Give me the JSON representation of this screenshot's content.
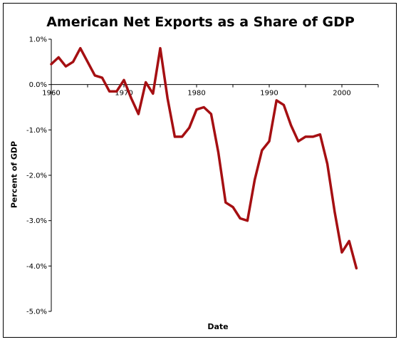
{
  "chart_data": {
    "type": "line",
    "title": "American Net Exports as a Share of GDP",
    "xlabel": "Date",
    "ylabel": "Percent of GDP",
    "xlim": [
      1960,
      2005
    ],
    "ylim": [
      -5.0,
      1.0
    ],
    "x_ticks": [
      1960,
      1970,
      1980,
      1990,
      2000
    ],
    "x_tick_labels": [
      "1960",
      "1970",
      "1980",
      "1990",
      "2000"
    ],
    "y_ticks": [
      1.0,
      0.0,
      -1.0,
      -2.0,
      -3.0,
      -4.0,
      -5.0
    ],
    "y_tick_labels": [
      "1.0%",
      "0.0%",
      "-1.0%",
      "-2.0%",
      "-3.0%",
      "-4.0%",
      "-5.0%"
    ],
    "grid": false,
    "legend": "none",
    "line_color": "#a50f12",
    "x": [
      1960,
      1961,
      1962,
      1963,
      1964,
      1965,
      1966,
      1967,
      1968,
      1969,
      1970,
      1971,
      1972,
      1973,
      1974,
      1975,
      1976,
      1977,
      1978,
      1979,
      1980,
      1981,
      1982,
      1983,
      1984,
      1985,
      1986,
      1987,
      1988,
      1989,
      1990,
      1991,
      1992,
      1993,
      1994,
      1995,
      1996,
      1997,
      1998,
      1999,
      2000,
      2001,
      2002
    ],
    "series": [
      {
        "values": [
          0.45,
          0.6,
          0.4,
          0.5,
          0.8,
          0.5,
          0.2,
          0.15,
          -0.15,
          -0.15,
          0.1,
          -0.3,
          -0.65,
          0.05,
          -0.2,
          0.8,
          -0.3,
          -1.15,
          -1.15,
          -0.95,
          -0.55,
          -0.5,
          -0.65,
          -1.5,
          -2.6,
          -2.7,
          -2.95,
          -3.0,
          -2.1,
          -1.45,
          -1.25,
          -0.35,
          -0.45,
          -0.9,
          -1.25,
          -1.15,
          -1.15,
          -1.1,
          -1.75,
          -2.8,
          -3.7,
          -3.45,
          -4.05
        ]
      }
    ]
  }
}
